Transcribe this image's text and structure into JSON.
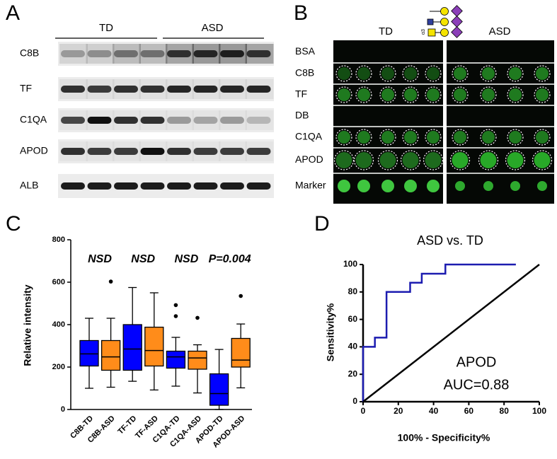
{
  "panel_a": {
    "label": "A",
    "groups": [
      "TD",
      "ASD"
    ],
    "rows": [
      "C8B",
      "TF",
      "C1QA",
      "APOD",
      "ALB"
    ]
  },
  "panel_b": {
    "label": "B",
    "groups": [
      "TD",
      "ASD"
    ],
    "glycan_linkage": "α3",
    "rows": [
      "BSA",
      "C8B",
      "TF",
      "DB",
      "C1QA",
      "APOD",
      "Marker"
    ]
  },
  "chart_data": [
    {
      "type": "box",
      "panel_label": "C",
      "ylabel": "Relative intensity",
      "categories": [
        "C8B-TD",
        "C8B-ASD",
        "TF-TD",
        "TF-ASD",
        "C1QA-TD",
        "C1QA-ASD",
        "APOD-TD",
        "APOD-ASD"
      ],
      "boxes": [
        {
          "min": 100,
          "q1": 205,
          "median": 262,
          "q3": 325,
          "max": 430,
          "outliers": [],
          "color": "#0000ff"
        },
        {
          "min": 105,
          "q1": 185,
          "median": 248,
          "q3": 325,
          "max": 430,
          "outliers": [
            603
          ],
          "color": "#ff8c1a"
        },
        {
          "min": 133,
          "q1": 185,
          "median": 285,
          "q3": 400,
          "max": 575,
          "outliers": [],
          "color": "#0000ff"
        },
        {
          "min": 92,
          "q1": 205,
          "median": 278,
          "q3": 388,
          "max": 550,
          "outliers": [],
          "color": "#ff8c1a"
        },
        {
          "min": 110,
          "q1": 195,
          "median": 248,
          "q3": 275,
          "max": 340,
          "outliers": [
            492,
            440
          ],
          "color": "#0000ff"
        },
        {
          "min": 78,
          "q1": 190,
          "median": 243,
          "q3": 275,
          "max": 305,
          "outliers": [
            432
          ],
          "color": "#ff8c1a"
        },
        {
          "min": 0,
          "q1": 20,
          "median": 75,
          "q3": 168,
          "max": 283,
          "outliers": [],
          "color": "#0000ff"
        },
        {
          "min": 102,
          "q1": 200,
          "median": 233,
          "q3": 335,
          "max": 403,
          "outliers": [
            535
          ],
          "color": "#ff8c1a"
        }
      ],
      "annotations": [
        "NSD",
        "NSD",
        "NSD",
        "P=0.004"
      ],
      "ylim": [
        0,
        800
      ],
      "yticks": [
        0,
        200,
        400,
        600,
        800
      ]
    },
    {
      "type": "line",
      "panel_label": "D",
      "title": "ASD vs. TD",
      "xlabel": "100% - Specificity%",
      "ylabel": "Sensitivity%",
      "series": [
        {
          "color": "#1c1cb0",
          "x": [
            0,
            0,
            6.7,
            6.7,
            13.3,
            13.3,
            26.7,
            26.7,
            33.3,
            33.3,
            46.7,
            46.7,
            86.7
          ],
          "values": [
            0,
            40,
            40,
            46.7,
            46.7,
            80,
            80,
            86.7,
            86.7,
            93.3,
            93.3,
            100,
            100
          ]
        },
        {
          "color": "#000000",
          "x": [
            0,
            100
          ],
          "values": [
            0,
            100
          ]
        }
      ],
      "annotations": [
        "APOD",
        "AUC=0.88"
      ],
      "xlim": [
        0,
        100
      ],
      "ylim": [
        0,
        100
      ],
      "xticks": [
        0,
        20,
        40,
        60,
        80,
        100
      ],
      "yticks": [
        0,
        20,
        40,
        60,
        80,
        100
      ]
    }
  ]
}
